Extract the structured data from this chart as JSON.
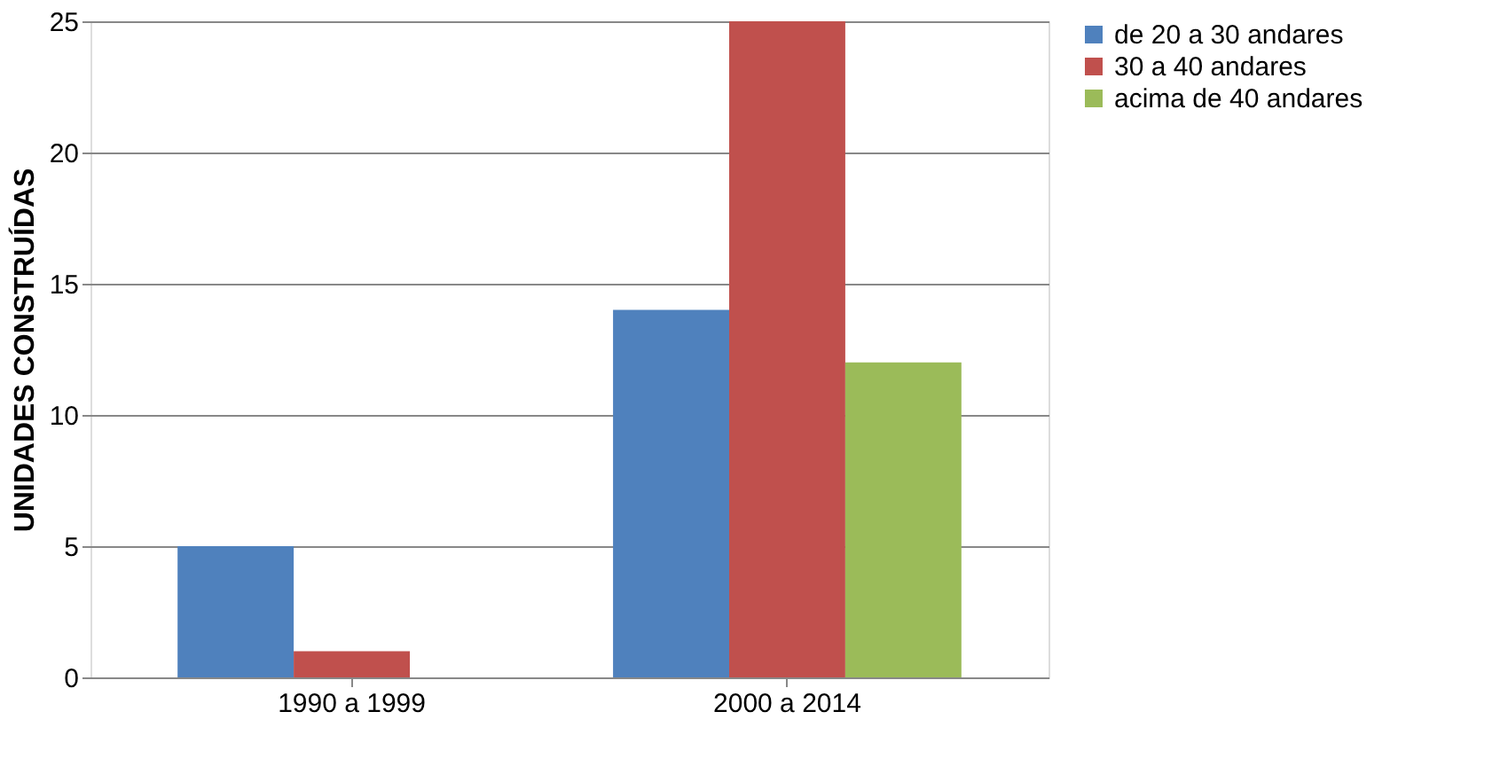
{
  "chart_data": {
    "type": "bar",
    "ylabel": "UNIDADES CONSTRUÍDAS",
    "categories": [
      "1990 a 1999",
      "2000 a 2014"
    ],
    "series": [
      {
        "name": "de 20 a 30 andares",
        "color": "#4f81bd",
        "values": [
          5,
          14
        ]
      },
      {
        "name": "30 a 40 andares",
        "color": "#c0504d",
        "values": [
          1,
          25
        ]
      },
      {
        "name": "acima de 40 andares",
        "color": "#9bbb59",
        "values": [
          null,
          12
        ]
      }
    ],
    "ylim": [
      0,
      25
    ],
    "yticks": [
      0,
      5,
      10,
      15,
      20,
      25
    ],
    "grid": "y",
    "legend": "right"
  }
}
